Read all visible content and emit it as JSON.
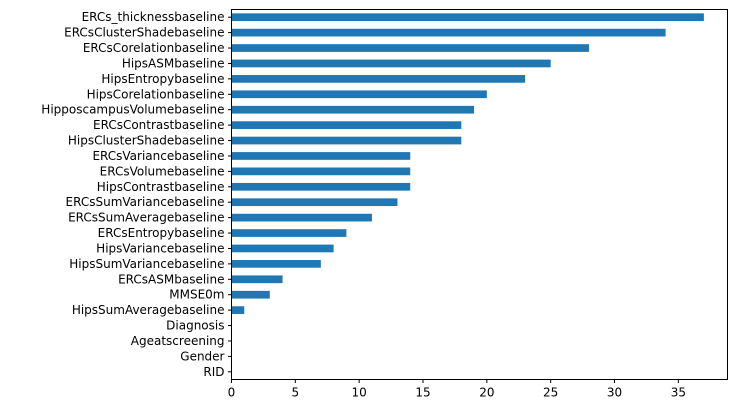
{
  "chart_data": {
    "type": "bar",
    "orientation": "horizontal",
    "color": "#1f77b4",
    "grid": false,
    "legend": "none",
    "xlim": [
      0,
      38.85
    ],
    "xticks": [
      0,
      5,
      10,
      15,
      20,
      25,
      30,
      35
    ],
    "categories": [
      "ERCs_thicknessbaseline",
      "ERCsClusterShadebaseline",
      "ERCsCorelationbaseline",
      "HipsASMbaseline",
      "HipsEntropybaseline",
      "HipsCorelationbaseline",
      "HipposcampusVolumebaseline",
      "ERCsContrastbaseline",
      "HipsClusterShadebaseline",
      "ERCsVariancebaseline",
      "ERCsVolumebaseline",
      "HipsContrastbaseline",
      "ERCsSumVariancebaseline",
      "ERCsSumAveragebaseline",
      "ERCsEntropybaseline",
      "HipsVariancebaseline",
      "HipsSumVariancebaseline",
      "ERCsASMbaseline",
      "MMSE0m",
      "HipsSumAveragebaseline",
      "Diagnosis",
      "Ageatscreening",
      "Gender",
      "RID"
    ],
    "values": [
      37,
      34,
      28,
      25,
      23,
      20,
      19,
      18,
      18,
      14,
      14,
      14,
      13,
      11,
      9,
      8,
      7,
      4,
      3,
      1,
      0,
      0,
      0,
      0
    ]
  }
}
